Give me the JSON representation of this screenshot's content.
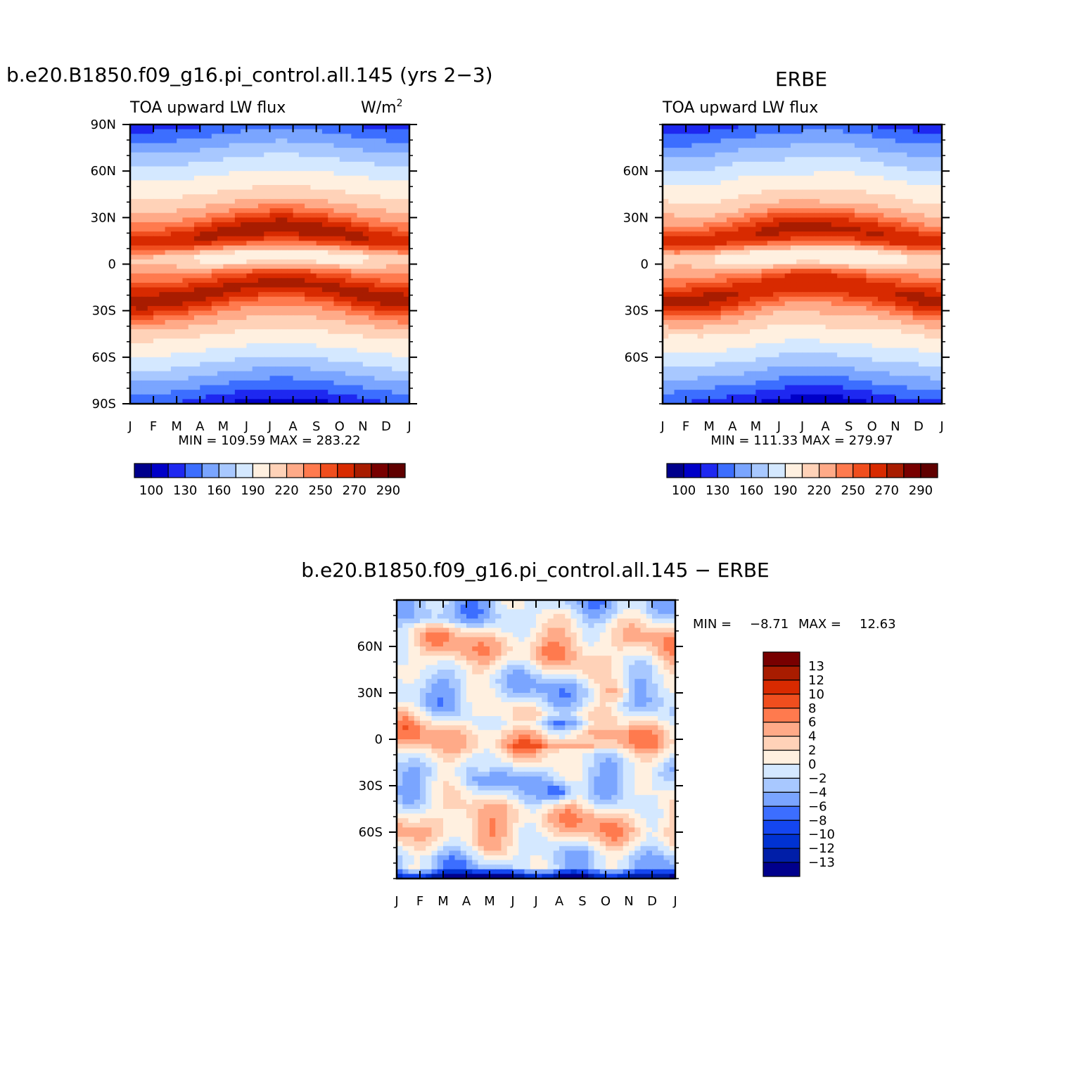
{
  "colors": {
    "scale16": [
      "#00008c",
      "#0000c8",
      "#1e28f0",
      "#3c6eff",
      "#7aa5ff",
      "#a8c8ff",
      "#d4e8ff",
      "#fff0e0",
      "#ffd2b8",
      "#ffaa88",
      "#ff7a4e",
      "#f04e1e",
      "#d82a00",
      "#a81c00",
      "#780000",
      "#600000"
    ],
    "scale15": [
      "#00008c",
      "#001ea8",
      "#0032d2",
      "#1446f0",
      "#3c6eff",
      "#7aa5ff",
      "#a8c8ff",
      "#d4e8ff",
      "#fff0e0",
      "#ffd2b8",
      "#ffaa88",
      "#ff7a4e",
      "#f04e1e",
      "#d82a00",
      "#a81c00",
      "#780000"
    ]
  },
  "chart_data": [
    {
      "name": "model",
      "type": "heatmap",
      "title": "b.e20.B1850.f09_g16.pi_control.all.145 (yrs 2−3)",
      "left_label": "TOA upward LW flux",
      "units": "W/m",
      "units_sup": "2",
      "x_ticks": [
        "J",
        "F",
        "M",
        "A",
        "M",
        "J",
        "J",
        "A",
        "S",
        "O",
        "N",
        "D",
        "J"
      ],
      "y_ticks": [
        "90N",
        "60N",
        "30N",
        "0",
        "30S",
        "60S",
        "90S"
      ],
      "xlim": [
        0,
        12
      ],
      "ylim": [
        -90,
        90
      ],
      "stats": "MIN = 109.59 MAX = 283.22",
      "colorbar": {
        "levels": [
          100,
          110,
          120,
          130,
          140,
          150,
          160,
          170,
          180,
          190,
          200,
          220,
          240,
          250,
          260,
          270,
          280,
          290,
          300
        ],
        "labels": [
          "100",
          "130",
          "160",
          "190",
          "220",
          "250",
          "270",
          "290"
        ]
      }
    },
    {
      "name": "obs",
      "type": "heatmap",
      "title": "ERBE",
      "left_label": "TOA upward LW flux",
      "x_ticks": [
        "J",
        "F",
        "M",
        "A",
        "M",
        "J",
        "J",
        "A",
        "S",
        "O",
        "N",
        "D",
        "J"
      ],
      "y_ticks": [
        "60N",
        "30N",
        "0",
        "30S",
        "60S"
      ],
      "xlim": [
        0,
        12
      ],
      "ylim": [
        -90,
        90
      ],
      "stats": "MIN = 111.33 MAX = 279.97",
      "colorbar": {
        "labels": [
          "100",
          "130",
          "160",
          "190",
          "220",
          "250",
          "270",
          "290"
        ]
      }
    },
    {
      "name": "diff",
      "type": "heatmap",
      "title": "b.e20.B1850.f09_g16.pi_control.all.145 − ERBE",
      "x_ticks": [
        "J",
        "F",
        "M",
        "A",
        "M",
        "J",
        "J",
        "A",
        "S",
        "O",
        "N",
        "D",
        "J"
      ],
      "y_ticks": [
        "60N",
        "30N",
        "0",
        "30S",
        "60S"
      ],
      "xlim": [
        0,
        12
      ],
      "ylim": [
        -90,
        90
      ],
      "stats_min_label": "MIN =",
      "stats_min": "−8.71",
      "stats_max_label": "MAX =",
      "stats_max": "12.63",
      "colorbar": {
        "labels": [
          "13",
          "12",
          "10",
          "8",
          "6",
          "4",
          "2",
          "0",
          "−2",
          "−4",
          "−6",
          "−8",
          "−10",
          "−12",
          "−13"
        ]
      }
    }
  ]
}
